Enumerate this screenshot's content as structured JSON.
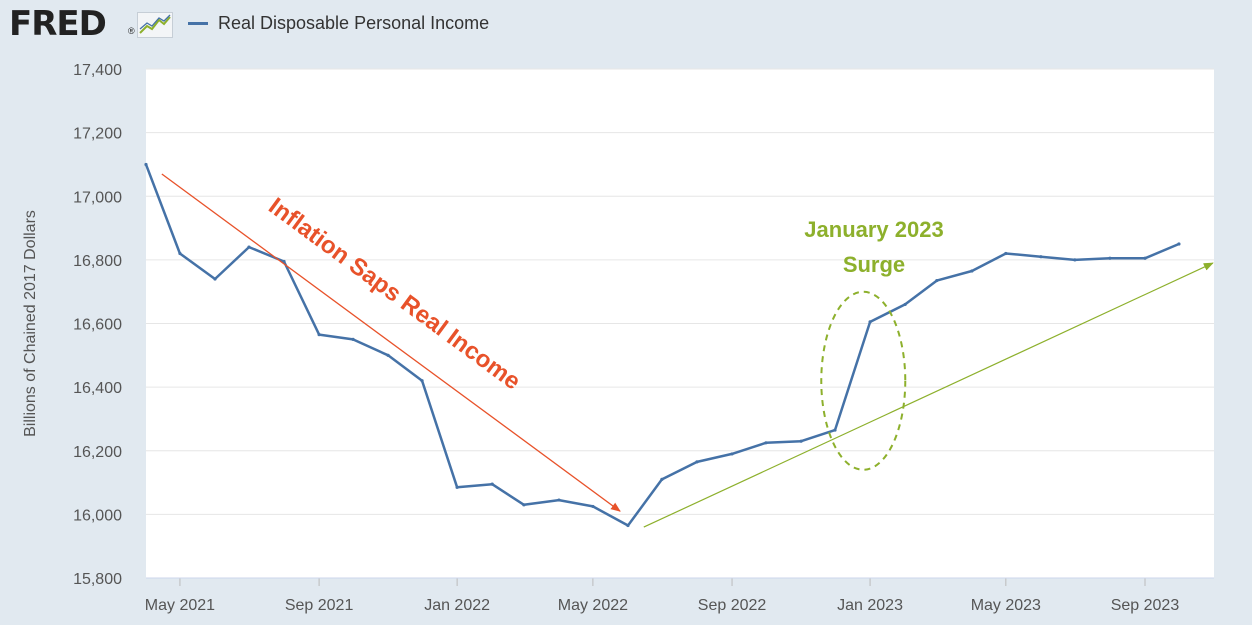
{
  "header": {
    "logo_text": "FRED",
    "logo_mark": "®",
    "logo_icon": "trend-graph-icon",
    "legend_label": "Real Disposable Personal Income"
  },
  "colors": {
    "background": "#e1e9f0",
    "plot_background": "#ffffff",
    "series": "#4572a7",
    "down_annotation": "#e8522a",
    "up_annotation": "#8db02c"
  },
  "chart_data": {
    "type": "line",
    "title": "",
    "ylabel": "Billions of Chained 2017 Dollars",
    "xlabel": "",
    "ylim": [
      15800,
      17400
    ],
    "yticks": [
      15800,
      16000,
      16200,
      16400,
      16600,
      16800,
      17000,
      17200,
      17400
    ],
    "ytick_labels": [
      "15,800",
      "16,000",
      "16,200",
      "16,400",
      "16,600",
      "16,800",
      "17,000",
      "17,200",
      "17,400"
    ],
    "xlim": [
      "2021-04-01",
      "2023-11-01"
    ],
    "xticks": [
      "2021-05-01",
      "2021-09-01",
      "2022-01-01",
      "2022-05-01",
      "2022-09-01",
      "2023-01-01",
      "2023-05-01",
      "2023-09-01"
    ],
    "xtick_labels": [
      "May 2021",
      "Sep 2021",
      "Jan 2022",
      "May 2022",
      "Sep 2022",
      "Jan 2023",
      "May 2023",
      "Sep 2023"
    ],
    "grid": true,
    "legend_position": "top",
    "series": [
      {
        "name": "Real Disposable Personal Income",
        "x": [
          "2021-04-01",
          "2021-05-01",
          "2021-06-01",
          "2021-07-01",
          "2021-08-01",
          "2021-09-01",
          "2021-10-01",
          "2021-11-01",
          "2021-12-01",
          "2022-01-01",
          "2022-02-01",
          "2022-03-01",
          "2022-04-01",
          "2022-05-01",
          "2022-06-01",
          "2022-07-01",
          "2022-08-01",
          "2022-09-01",
          "2022-10-01",
          "2022-11-01",
          "2022-12-01",
          "2023-01-01",
          "2023-02-01",
          "2023-03-01",
          "2023-04-01",
          "2023-05-01",
          "2023-06-01",
          "2023-07-01",
          "2023-08-01",
          "2023-09-01",
          "2023-10-01"
        ],
        "y": [
          17100,
          16820,
          16740,
          16840,
          16795,
          16565,
          16550,
          16500,
          16420,
          16085,
          16095,
          16030,
          16045,
          16025,
          15965,
          16110,
          16165,
          16190,
          16225,
          16230,
          16265,
          16605,
          16660,
          16735,
          16765,
          16820,
          16810,
          16800,
          16805,
          16805,
          16850
        ]
      }
    ],
    "annotations": [
      {
        "text": "Inflation Saps Real Income",
        "type": "arrow-down",
        "from": [
          "2021-04-15",
          17070
        ],
        "to": [
          "2022-05-25",
          16010
        ]
      },
      {
        "text_lines": [
          "January 2023",
          "Surge"
        ],
        "type": "ellipse",
        "center": [
          "2022-12-26",
          16420
        ]
      },
      {
        "type": "arrow-up",
        "from": [
          "2022-06-15",
          15960
        ],
        "to": [
          "2023-10-31",
          16790
        ]
      }
    ]
  }
}
